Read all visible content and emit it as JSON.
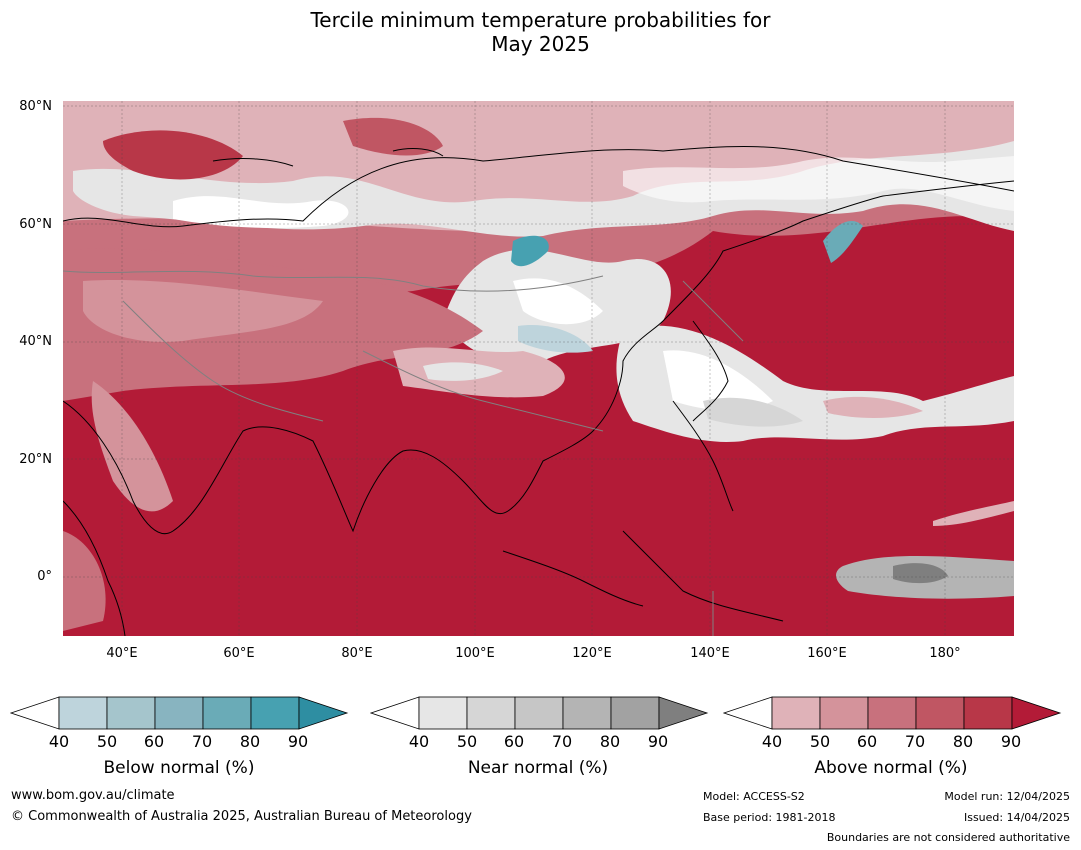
{
  "title_line1": "Tercile minimum temperature probabilities for",
  "title_line2": "May 2025",
  "lat_labels": [
    "80°N",
    "60°N",
    "40°N",
    "20°N",
    "0°"
  ],
  "lon_labels": [
    "40°E",
    "60°E",
    "80°E",
    "100°E",
    "120°E",
    "140°E",
    "160°E",
    "180°"
  ],
  "colorbars": [
    {
      "label": "Below normal (%)",
      "ticks": [
        "40",
        "50",
        "60",
        "70",
        "80",
        "90"
      ],
      "colors": [
        "#ffffff",
        "#bed4dc",
        "#a5c5cc",
        "#88b4c0",
        "#6aabb7",
        "#47a1b1",
        "#2e8ea2"
      ]
    },
    {
      "label": "Near normal (%)",
      "ticks": [
        "40",
        "50",
        "60",
        "70",
        "80",
        "90"
      ],
      "colors": [
        "#ffffff",
        "#e6e6e6",
        "#d6d6d6",
        "#c6c6c6",
        "#b4b4b4",
        "#a2a2a2",
        "#7f7f7f"
      ]
    },
    {
      "label": "Above normal (%)",
      "ticks": [
        "40",
        "50",
        "60",
        "70",
        "80",
        "90"
      ],
      "colors": [
        "#ffffff",
        "#dfb2b8",
        "#d4939b",
        "#c8717d",
        "#c05663",
        "#b83748",
        "#b31b37"
      ]
    }
  ],
  "footer": {
    "url": "www.bom.gov.au/climate",
    "copyright": "© Commonwealth of Australia 2025, Australian Bureau of Meteorology",
    "model": "Model: ACCESS-S2",
    "base_period": "Base period: 1981-2018",
    "model_run": "Model run: 12/04/2025",
    "issued": "Issued: 14/04/2025",
    "boundaries": "Boundaries are not considered authoritative"
  }
}
